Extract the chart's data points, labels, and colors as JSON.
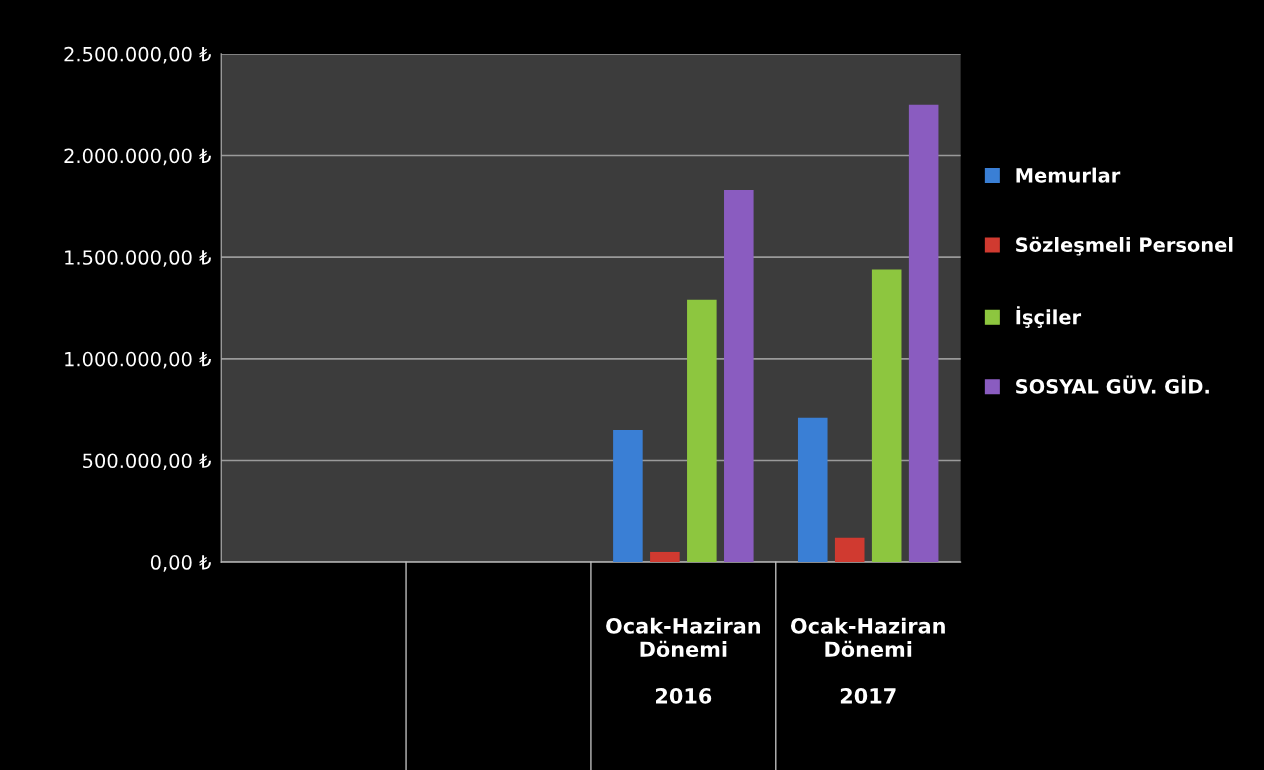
{
  "chart_data": {
    "type": "bar",
    "categories": [
      null,
      null,
      "Ocak-Haziran\nDönemi\n\n2016",
      "Ocak-Haziran\nDönemi\n\n2017"
    ],
    "series": [
      {
        "name": "Memurlar",
        "color": "#3a7fd5",
        "values": [
          null,
          null,
          650000,
          710000
        ]
      },
      {
        "name": "Sözleşmeli Personel",
        "color": "#d03a30",
        "values": [
          null,
          null,
          50000,
          120000
        ]
      },
      {
        "name": "İşçiler",
        "color": "#8dc63f",
        "values": [
          null,
          null,
          1290000,
          1440000
        ]
      },
      {
        "name": "SOSYAL GÜV. GİD.",
        "color": "#8a5cc0",
        "values": [
          null,
          null,
          1830000,
          2250000
        ]
      }
    ],
    "ylim": [
      0,
      2500000
    ],
    "yticks": [
      {
        "value": 0,
        "label": "0,00 ₺"
      },
      {
        "value": 500000,
        "label": "500.000,00 ₺"
      },
      {
        "value": 1000000,
        "label": "1.000.000,00 ₺"
      },
      {
        "value": 1500000,
        "label": "1.500.000,00 ₺"
      },
      {
        "value": 2000000,
        "label": "2.000.000,00 ₺"
      },
      {
        "value": 2500000,
        "label": "2.500.000,00 ₺"
      }
    ],
    "grid": "y",
    "legend": "right"
  }
}
